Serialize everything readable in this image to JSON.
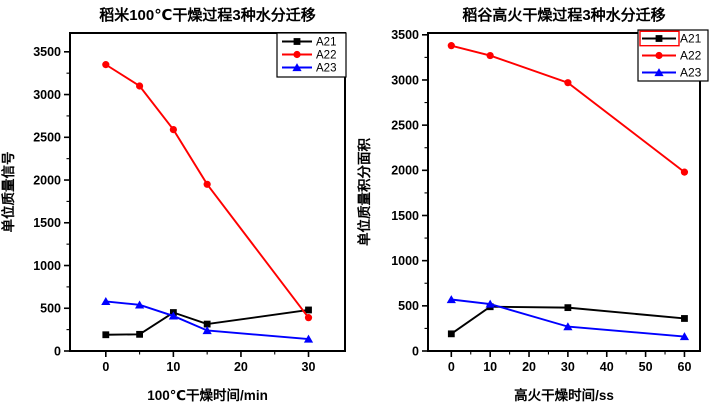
{
  "page": {
    "background": "#ffffff"
  },
  "colors": {
    "axis": "#000000",
    "series_black": "#000000",
    "series_red": "#ff0000",
    "series_blue": "#0000ff",
    "legend_selection_box": "#ff0000"
  },
  "chart_data": [
    {
      "type": "line",
      "title": "稻米100℃干燥过程3种水分迁移",
      "xlabel": "100℃干燥时间/min",
      "ylabel": "单位质量信号",
      "x": [
        0,
        5,
        10,
        15,
        30
      ],
      "series": [
        {
          "name": "A21",
          "color": "#000000",
          "marker": "square",
          "values": [
            190,
            195,
            450,
            315,
            480
          ]
        },
        {
          "name": "A22",
          "color": "#ff0000",
          "marker": "circle",
          "values": [
            3350,
            3100,
            2590,
            1950,
            390
          ]
        },
        {
          "name": "A23",
          "color": "#0000ff",
          "marker": "triangle",
          "values": [
            580,
            540,
            410,
            240,
            140
          ]
        }
      ],
      "xlim": [
        -5.3,
        35.4
      ],
      "ylim": [
        0,
        3720
      ],
      "xticks": [
        0,
        10,
        20,
        30
      ],
      "xminor": [
        5,
        15,
        25
      ],
      "yticks": [
        0,
        500,
        1000,
        1500,
        2000,
        2500,
        3000,
        3500
      ],
      "yminor": [
        250,
        750,
        1250,
        1750,
        2250,
        2750,
        3250
      ],
      "grid": false,
      "legend_position": "top-right",
      "legend_entries": [
        "A21",
        "A22",
        "A23"
      ],
      "legend_selected": null
    },
    {
      "type": "line",
      "title": "稻谷高火干燥过程3种水分迁移",
      "xlabel": "高火干燥时间/ss",
      "ylabel": "单位质量积分面积",
      "x": [
        0,
        10,
        30,
        60
      ],
      "series": [
        {
          "name": "A21",
          "color": "#000000",
          "marker": "square",
          "values": [
            190,
            490,
            480,
            360
          ]
        },
        {
          "name": "A22",
          "color": "#ff0000",
          "marker": "circle",
          "values": [
            3380,
            3270,
            2970,
            1980
          ]
        },
        {
          "name": "A23",
          "color": "#0000ff",
          "marker": "triangle",
          "values": [
            570,
            520,
            270,
            160
          ]
        }
      ],
      "xlim": [
        -6,
        64
      ],
      "ylim": [
        0,
        3520
      ],
      "xticks": [
        0,
        10,
        20,
        30,
        40,
        50,
        60
      ],
      "xminor": [
        5,
        15,
        25,
        35,
        45,
        55
      ],
      "yticks": [
        0,
        500,
        1000,
        1500,
        2000,
        2500,
        3000,
        3500
      ],
      "yminor": [
        250,
        750,
        1250,
        1750,
        2250,
        2750,
        3250
      ],
      "grid": false,
      "legend_position": "top-right",
      "legend_entries": [
        "A21",
        "A22",
        "A23"
      ],
      "legend_selected": "A21"
    }
  ]
}
